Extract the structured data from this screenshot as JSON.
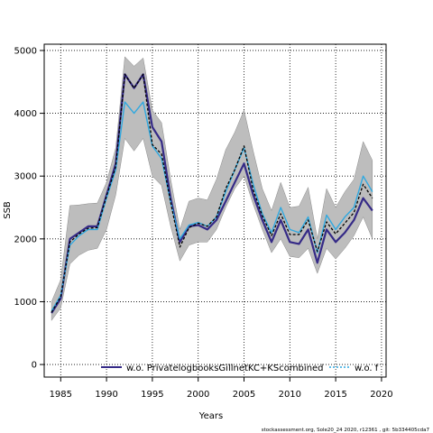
{
  "chart_data": {
    "type": "line",
    "xlabel": "Years",
    "ylabel": "SSB",
    "xlim": [
      1983.2,
      2020.5
    ],
    "ylim": [
      -200,
      5100
    ],
    "x_ticks": [
      1985,
      1990,
      1995,
      2000,
      2005,
      2010,
      2015,
      2020
    ],
    "y_ticks": [
      0,
      1000,
      2000,
      3000,
      4000,
      5000
    ],
    "grid": true,
    "legend_placement": "bottom",
    "x": [
      1984,
      1985,
      1986,
      1987,
      1988,
      1989,
      1990,
      1991,
      1992,
      1993,
      1994,
      1995,
      1996,
      1997,
      1998,
      1999,
      2000,
      2001,
      2002,
      2003,
      2004,
      2005,
      2006,
      2007,
      2008,
      2009,
      2010,
      2011,
      2012,
      2013,
      2014,
      2015,
      2016,
      2017,
      2018,
      2019
    ],
    "ci_upper": [
      1000,
      1350,
      2530,
      2540,
      2560,
      2570,
      2900,
      3450,
      4900,
      4750,
      4880,
      4050,
      3850,
      2950,
      2150,
      2600,
      2650,
      2620,
      2950,
      3420,
      3700,
      4050,
      3400,
      2800,
      2450,
      2900,
      2500,
      2520,
      2820,
      2000,
      2800,
      2500,
      2750,
      2950,
      3550,
      3250
    ],
    "ci_lower": [
      700,
      900,
      1600,
      1740,
      1820,
      1850,
      2150,
      2700,
      3600,
      3400,
      3600,
      3000,
      2850,
      2200,
      1650,
      1900,
      1950,
      1950,
      2150,
      2500,
      2800,
      3000,
      2550,
      2150,
      1780,
      2000,
      1720,
      1700,
      1850,
      1450,
      1850,
      1680,
      1850,
      2050,
      2350,
      2000
    ],
    "series": [
      {
        "name": "w.o. PrivatelogbooksGillnetKC+KScombined",
        "color": "#352a87",
        "values": [
          820,
          1050,
          2000,
          2100,
          2200,
          2200,
          2700,
          3200,
          4620,
          4400,
          4620,
          3780,
          3550,
          2650,
          1950,
          2200,
          2220,
          2150,
          2300,
          2600,
          2900,
          3200,
          2700,
          2300,
          1950,
          2300,
          1950,
          1920,
          2150,
          1620,
          2150,
          1950,
          2100,
          2300,
          2650,
          2450
        ]
      },
      {
        "name": "w.o. f",
        "color": "#30a9e0",
        "values": [
          850,
          1100,
          1900,
          2050,
          2150,
          2150,
          2650,
          3100,
          4180,
          4000,
          4180,
          3480,
          3280,
          2580,
          2000,
          2220,
          2260,
          2200,
          2350,
          2750,
          3100,
          3450,
          2870,
          2400,
          2100,
          2500,
          2150,
          2100,
          2350,
          1780,
          2380,
          2150,
          2350,
          2500,
          3000,
          2750
        ]
      },
      {
        "name": "",
        "color": "#000000",
        "dashed": true,
        "values": [
          830,
          1080,
          1950,
          2080,
          2170,
          2180,
          2680,
          3150,
          4620,
          4400,
          4620,
          3500,
          3350,
          2580,
          1870,
          2180,
          2250,
          2200,
          2350,
          2800,
          3100,
          3480,
          2780,
          2370,
          2050,
          2400,
          2070,
          2070,
          2300,
          1800,
          2270,
          2080,
          2250,
          2420,
          2870,
          2650
        ]
      }
    ]
  },
  "footer_text": "stockassessment.org, Sole20_24 2020, r12361 , git: 5b334405cda7"
}
